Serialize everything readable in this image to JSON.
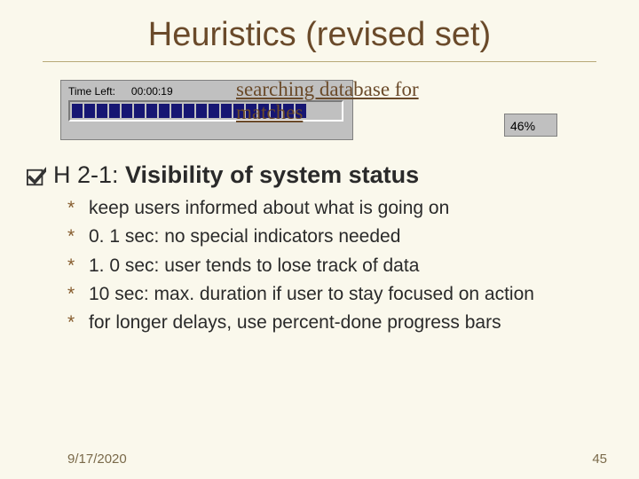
{
  "title": "Heuristics (revised set)",
  "progress": {
    "time_left_label": "Time Left:",
    "time_left_value": "00:00:19",
    "overlay_line1": "searching database for",
    "overlay_line2": "matches",
    "bar_chunks": 19,
    "bar_color": "#161673",
    "panel_bg": "#c0c0c0",
    "percent_text": "46%"
  },
  "heading": {
    "prefix": "H 2-1:",
    "rest": " Visibility of system status"
  },
  "bullets": [
    "keep users informed about what is going on",
    "0. 1 sec: no special indicators needed",
    "1. 0 sec: user tends to lose track of data",
    "10 sec: max. duration if user to stay focused on action",
    "for longer delays, use percent-done progress bars"
  ],
  "footer": {
    "date": "9/17/2020",
    "page": "45"
  },
  "style": {
    "background": "#faf8ec",
    "title_color": "#6a4a2a",
    "star_color": "#865c2e",
    "check_fill": "#333333"
  }
}
